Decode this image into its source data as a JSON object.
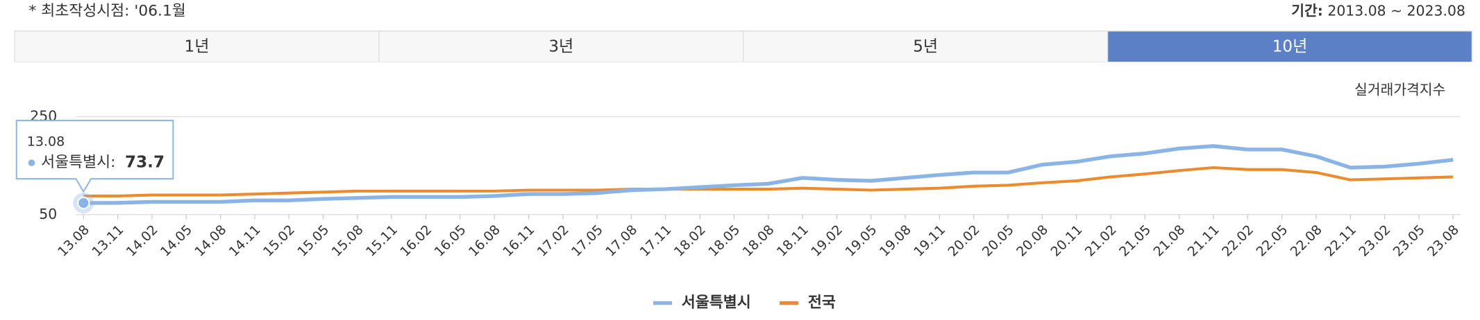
{
  "header": {
    "note": "* 최초작성시점: '06.1월",
    "period_label": "기간:",
    "period": "2013.08 ~ 2023.08"
  },
  "tabs": [
    {
      "label": "1년",
      "active": false
    },
    {
      "label": "3년",
      "active": false
    },
    {
      "label": "5년",
      "active": false
    },
    {
      "label": "10년",
      "active": true
    }
  ],
  "chart_data": {
    "type": "line",
    "y_label": "실거래가격지수",
    "categories": [
      "13.08",
      "13.11",
      "14.02",
      "14.05",
      "14.08",
      "14.11",
      "15.02",
      "15.05",
      "15.08",
      "15.11",
      "16.02",
      "16.05",
      "16.08",
      "16.11",
      "17.02",
      "17.05",
      "17.08",
      "17.11",
      "18.02",
      "18.05",
      "18.08",
      "18.11",
      "19.02",
      "19.05",
      "19.08",
      "19.11",
      "20.02",
      "20.05",
      "20.08",
      "20.11",
      "21.02",
      "21.05",
      "21.08",
      "21.11",
      "22.02",
      "22.05",
      "22.08",
      "22.11",
      "23.02",
      "23.05",
      "23.08"
    ],
    "series": [
      {
        "name": "서울특별시",
        "color": "#8ab4e6",
        "values": [
          73.7,
          74,
          76,
          76,
          76,
          79,
          79,
          82,
          84,
          86,
          86,
          86,
          88,
          92,
          92,
          94,
          100,
          102,
          106,
          110,
          113,
          125,
          121,
          119,
          125,
          131,
          136,
          136,
          152,
          158,
          169,
          175,
          185,
          190,
          183,
          183,
          169,
          146,
          148,
          154,
          162
        ]
      },
      {
        "name": "전국",
        "color": "#ec8a2e",
        "values": [
          88,
          88,
          90,
          90,
          90,
          92,
          94,
          96,
          98,
          98,
          98,
          98,
          98,
          100,
          100,
          100,
          102,
          102,
          102,
          102,
          102,
          104,
          102,
          100,
          102,
          104,
          108,
          110,
          115,
          119,
          127,
          133,
          140,
          146,
          142,
          142,
          136,
          121,
          123,
          125,
          127
        ]
      }
    ],
    "ylim": [
      50,
      250
    ],
    "yticks": [
      50,
      250
    ],
    "grid": true,
    "tooltip": {
      "x": "13.08",
      "name": "서울특별시:",
      "value": 73.7
    }
  }
}
